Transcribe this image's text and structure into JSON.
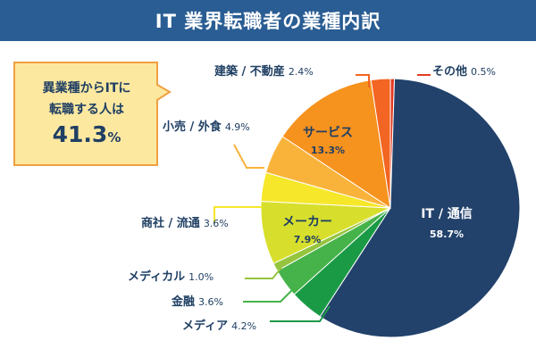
{
  "title": "IT 業界転職者の業種内訳",
  "callout": {
    "line1": "異業種からITに",
    "line2": "転職する人は",
    "value": "41.3",
    "unit": "%"
  },
  "colors": {
    "title_bg": "#2a5d93",
    "callout_fill": "#fde8a0",
    "callout_stroke": "#f0a040",
    "label_text": "#1f3f63"
  },
  "chart_data": {
    "type": "pie",
    "title": "IT 業界転職者の業種内訳",
    "start": "12 o'clock",
    "direction": "clockwise",
    "slices": [
      {
        "label": "その他",
        "value": 0.5,
        "display": "0.5%",
        "color": "#e53a24",
        "label_pos": "outside"
      },
      {
        "label": "IT / 通信",
        "value": 58.7,
        "display": "58.7%",
        "color": "#22426b",
        "label_pos": "inside"
      },
      {
        "label": "メディア",
        "value": 4.2,
        "display": "4.2%",
        "color": "#1b9a46",
        "label_pos": "outside"
      },
      {
        "label": "金融",
        "value": 3.6,
        "display": "3.6%",
        "color": "#46b34a",
        "label_pos": "outside"
      },
      {
        "label": "メディカル",
        "value": 1.0,
        "display": "1.0%",
        "color": "#95c43e",
        "label_pos": "outside"
      },
      {
        "label": "メーカー",
        "value": 7.9,
        "display": "7.9%",
        "color": "#d7df2c",
        "label_pos": "inside"
      },
      {
        "label": "商社 / 流通",
        "value": 3.6,
        "display": "3.6%",
        "color": "#f6e72a",
        "label_pos": "outside"
      },
      {
        "label": "小売 / 外食",
        "value": 4.9,
        "display": "4.9%",
        "color": "#f9b33b",
        "label_pos": "outside"
      },
      {
        "label": "サービス",
        "value": 13.3,
        "display": "13.3%",
        "color": "#f6921e",
        "label_pos": "inside"
      },
      {
        "label": "建築 / 不動産",
        "value": 2.4,
        "display": "2.4%",
        "color": "#f26522",
        "label_pos": "outside"
      }
    ]
  }
}
